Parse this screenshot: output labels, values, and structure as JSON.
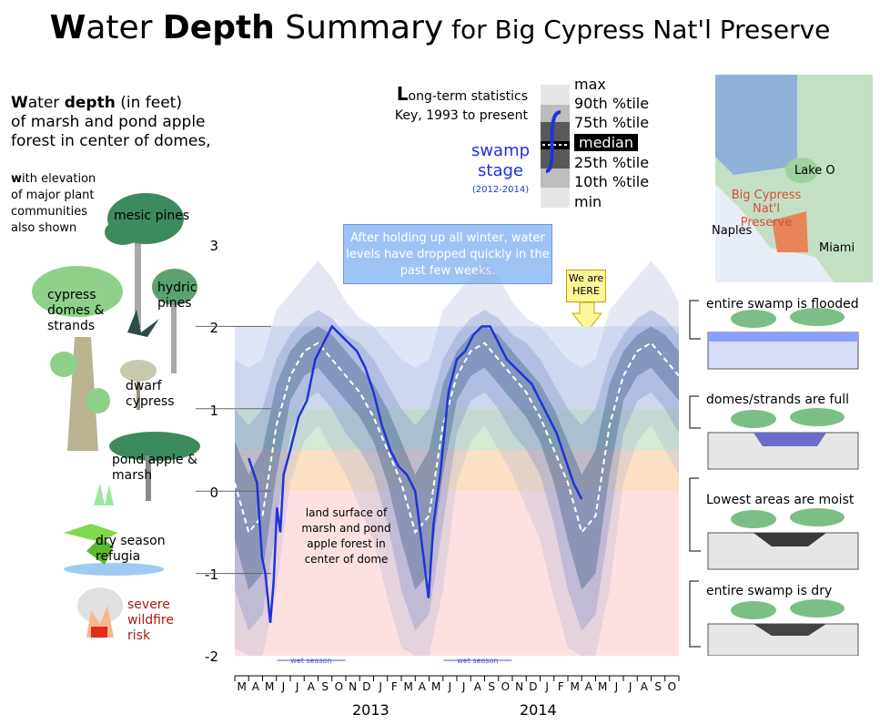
{
  "title": {
    "w": "W",
    "ater": "ater",
    "depth": "Depth",
    "rest": " Summary",
    "place": " for Big Cypress Nat'l Preserve"
  },
  "left": {
    "desc_line1a": "W",
    "desc_line1b": "ater ",
    "desc_line1c": "depth",
    "desc_line1d": " (in feet)",
    "desc_line2": "of marsh and pond apple",
    "desc_line3": "forest in center of domes,",
    "sub_line1a": "w",
    "sub_line1b": "ith elevation",
    "sub_line2": "of major plant",
    "sub_line3": "communities",
    "sub_line4": "also shown"
  },
  "plants": {
    "mesic": "mesic pines",
    "cypress": "cypress domes & strands",
    "hydric": "hydric pines",
    "dwarf": "dwarf cypress",
    "pond": "pond apple & marsh",
    "dry": "dry season refugia",
    "severe": "severe wildfire risk"
  },
  "key": {
    "title_cap": "L",
    "title_rest": "ong-term statistics",
    "title_line2": "Key, 1993 to present",
    "labels": [
      "max",
      "90th %tile",
      "75th %tile",
      "median",
      "25th %tile",
      "10th %tile",
      "min"
    ],
    "swamp_stage": "swamp stage",
    "years": "(2012-2014)"
  },
  "callout": {
    "text": "After holding up all winter, water levels have dropped quickly in the past few weeks."
  },
  "we_here": {
    "text": "We are HERE"
  },
  "map": {
    "lake": "Lake O",
    "preserve_line1": "Big Cypress",
    "preserve_line2": "Nat'l Preserve",
    "naples": "Naples",
    "miami": "Miami",
    "accent": "#d94a3a"
  },
  "scenes": [
    {
      "label": "entire swamp is flooded"
    },
    {
      "label": "domes/strands are full"
    },
    {
      "label": "Lowest areas are moist"
    },
    {
      "label": "entire swamp is dry"
    }
  ],
  "land_surface": {
    "text": "land surface of marsh and pond apple forest in center of dome"
  },
  "wet_season": "wet season",
  "chart_data": {
    "type": "area",
    "title": "Water Depth Summary for Big Cypress Nat'l Preserve",
    "ylabel": "Water depth (in feet)",
    "ylim": [
      -2,
      3
    ],
    "yticks": [
      3,
      2,
      1,
      0,
      -1,
      -2
    ],
    "months": [
      "M",
      "A",
      "M",
      "J",
      "J",
      "A",
      "S",
      "O",
      "N",
      "D",
      "J",
      "F",
      "M",
      "A",
      "M",
      "J",
      "J",
      "A",
      "S",
      "O",
      "N",
      "D",
      "J",
      "F",
      "M",
      "A",
      "M",
      "J",
      "J",
      "A",
      "S",
      "O"
    ],
    "years": [
      {
        "label": "2013"
      },
      {
        "label": "2014"
      }
    ],
    "stats_by_month": {
      "months": [
        "J",
        "F",
        "M",
        "A",
        "M",
        "J",
        "J",
        "A",
        "S",
        "O",
        "N",
        "D"
      ],
      "max": [
        2.0,
        1.8,
        1.6,
        1.5,
        1.6,
        2.2,
        2.4,
        2.6,
        2.8,
        2.6,
        2.3,
        2.1
      ],
      "p90": [
        1.6,
        1.3,
        1.0,
        0.8,
        1.0,
        1.6,
        1.9,
        2.1,
        2.2,
        2.1,
        1.9,
        1.8
      ],
      "p75": [
        1.3,
        1.0,
        0.6,
        0.2,
        0.5,
        1.3,
        1.7,
        1.9,
        2.0,
        1.9,
        1.7,
        1.5
      ],
      "median": [
        0.9,
        0.5,
        0.1,
        -0.5,
        -0.3,
        0.8,
        1.4,
        1.7,
        1.8,
        1.6,
        1.4,
        1.2
      ],
      "p25": [
        0.6,
        0.1,
        -0.6,
        -1.2,
        -1.0,
        0.2,
        1.1,
        1.4,
        1.5,
        1.3,
        1.1,
        0.9
      ],
      "p10": [
        0.2,
        -0.4,
        -1.2,
        -1.7,
        -1.5,
        -0.4,
        0.7,
        1.1,
        1.2,
        1.0,
        0.7,
        0.5
      ],
      "min": [
        -0.6,
        -1.3,
        -1.9,
        -2.0,
        -2.0,
        -1.2,
        0.1,
        0.6,
        0.8,
        0.5,
        0.2,
        -0.2
      ]
    },
    "series": [
      {
        "name": "swamp stage",
        "x": [
          2012.25,
          2012.3,
          2012.33,
          2012.35,
          2012.38,
          2012.4,
          2012.42,
          2012.44,
          2012.46,
          2012.5,
          2012.55,
          2012.6,
          2012.65,
          2012.7,
          2012.75,
          2012.8,
          2012.85,
          2012.9,
          2012.95,
          2013.0,
          2013.05,
          2013.1,
          2013.15,
          2013.2,
          2013.25,
          2013.3,
          2013.33,
          2013.36,
          2013.4,
          2013.45,
          2013.5,
          2013.55,
          2013.6,
          2013.65,
          2013.7,
          2013.75,
          2013.8,
          2013.85,
          2013.9,
          2013.95,
          2014.0,
          2014.05,
          2014.1,
          2014.15,
          2014.2,
          2014.25
        ],
        "y": [
          0.4,
          0.1,
          -0.8,
          -1.0,
          -1.6,
          -1.1,
          -0.2,
          -0.5,
          0.2,
          0.5,
          0.9,
          1.1,
          1.6,
          1.8,
          2.0,
          1.9,
          1.8,
          1.7,
          1.5,
          1.2,
          0.8,
          0.5,
          0.3,
          0.2,
          0.0,
          -0.8,
          -1.3,
          -0.4,
          0.2,
          1.2,
          1.6,
          1.7,
          1.9,
          2.0,
          2.0,
          1.8,
          1.6,
          1.5,
          1.4,
          1.3,
          1.1,
          0.9,
          0.7,
          0.4,
          0.1,
          -0.1
        ]
      }
    ]
  },
  "colors": {
    "flooded": "#8aa0ff",
    "full": "#7fb37f",
    "moist": "#f5b06a",
    "dry": "#ff7d7d",
    "stage": "#1f33d9"
  }
}
